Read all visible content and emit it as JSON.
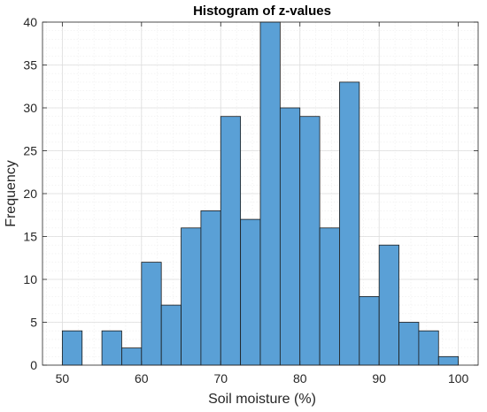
{
  "chart_data": {
    "type": "bar",
    "title": "Histogram of z-values",
    "xlabel": "Soil moisture (%)",
    "ylabel": "Frequency",
    "xlim": [
      47.5,
      102.5
    ],
    "ylim": [
      0,
      40
    ],
    "xticks": [
      50,
      60,
      70,
      80,
      90,
      100
    ],
    "yticks": [
      0,
      5,
      10,
      15,
      20,
      25,
      30,
      35,
      40
    ],
    "bin_width": 2.5,
    "bin_edges": [
      50,
      52.5,
      55,
      57.5,
      60,
      62.5,
      65,
      67.5,
      70,
      72.5,
      75,
      77.5,
      80,
      82.5,
      85,
      87.5,
      90,
      92.5,
      95,
      97.5,
      100
    ],
    "values": [
      4,
      0,
      4,
      2,
      12,
      7,
      16,
      18,
      29,
      17,
      40,
      30,
      29,
      16,
      33,
      8,
      14,
      5,
      4,
      1
    ],
    "bar_color": "#5aa0d6",
    "bar_edge_color": "#1a1a1a",
    "grid": true,
    "minor_grid": true
  }
}
